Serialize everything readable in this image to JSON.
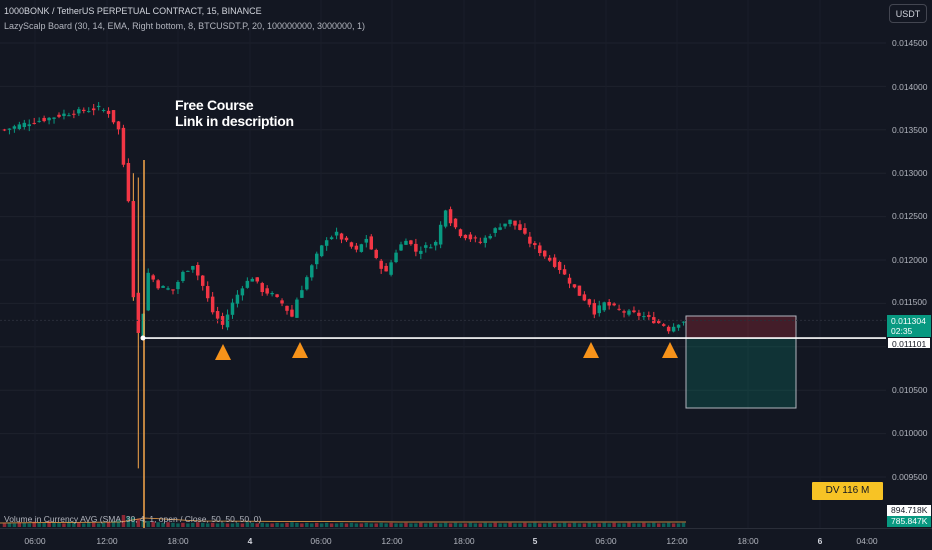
{
  "header": {
    "symbol_title": "1000BONK / TetherUS PERPETUAL CONTRACT, 15, BINANCE",
    "indicator_label": "LazyScalp Board (30, 14, EMA, Right bottom, 8, BTCUSDT.P, 20, 100000000, 3000000, 1)",
    "currency": "USDT"
  },
  "annotation": {
    "line1": "Free Course",
    "line2": "Link in description"
  },
  "price_axis": {
    "ticks": [
      "0.014500",
      "0.014000",
      "0.013500",
      "0.013000",
      "0.012500",
      "0.012000",
      "0.011500",
      "0.010500",
      "0.010000",
      "0.009500"
    ],
    "last_price": "0.011304",
    "countdown": "02:35",
    "level_price": "0.011101",
    "volume_value_1": "894.718K",
    "volume_value_2": "785.847K"
  },
  "dv_badge": "DV 116 M",
  "volume_panel": {
    "label": "Volume in Currency AVG (SMA, 30, 4, 1, open / Close, 50, 50, 50, 0)"
  },
  "time_axis": {
    "ticks": [
      "06:00",
      "12:00",
      "18:00",
      "4",
      "06:00",
      "12:00",
      "18:00",
      "5",
      "06:00",
      "12:00",
      "18:00",
      "6",
      "04:00"
    ]
  },
  "chart_data": {
    "type": "candlestick",
    "symbol": "1000BONK/USDT",
    "interval": "15",
    "ylim": [
      0.0093,
      0.0148
    ],
    "support_level": 0.011101,
    "last_price": 0.011304,
    "signal_markers": 4,
    "path_points": [
      [
        0,
        0.0135
      ],
      [
        4,
        0.01357
      ],
      [
        8,
        0.01362
      ],
      [
        12,
        0.01368
      ],
      [
        16,
        0.01372
      ],
      [
        19,
        0.01375
      ],
      [
        21,
        0.0137
      ],
      [
        23,
        0.0135
      ],
      [
        25,
        0.0127
      ],
      [
        26,
        0.0116
      ],
      [
        27,
        0.01115
      ],
      [
        28,
        0.0114
      ],
      [
        29,
        0.01185
      ],
      [
        31,
        0.0117
      ],
      [
        34,
        0.01165
      ],
      [
        36,
        0.01185
      ],
      [
        38,
        0.01195
      ],
      [
        40,
        0.0117
      ],
      [
        42,
        0.0114
      ],
      [
        44,
        0.01125
      ],
      [
        46,
        0.0115
      ],
      [
        48,
        0.0117
      ],
      [
        50,
        0.0118
      ],
      [
        52,
        0.01165
      ],
      [
        54,
        0.0116
      ],
      [
        56,
        0.0115
      ],
      [
        58,
        0.01135
      ],
      [
        59,
        0.01155
      ],
      [
        61,
        0.0118
      ],
      [
        63,
        0.01205
      ],
      [
        65,
        0.01225
      ],
      [
        67,
        0.0123
      ],
      [
        69,
        0.0122
      ],
      [
        71,
        0.0121
      ],
      [
        73,
        0.01225
      ],
      [
        75,
        0.012
      ],
      [
        77,
        0.01185
      ],
      [
        79,
        0.0121
      ],
      [
        81,
        0.01225
      ],
      [
        83,
        0.0121
      ],
      [
        85,
        0.01215
      ],
      [
        87,
        0.0122
      ],
      [
        88,
        0.0124
      ],
      [
        89,
        0.0126
      ],
      [
        90,
        0.01245
      ],
      [
        92,
        0.0123
      ],
      [
        94,
        0.01225
      ],
      [
        96,
        0.0122
      ],
      [
        98,
        0.0123
      ],
      [
        100,
        0.0124
      ],
      [
        102,
        0.01245
      ],
      [
        104,
        0.01235
      ],
      [
        106,
        0.0122
      ],
      [
        108,
        0.0121
      ],
      [
        110,
        0.012
      ],
      [
        112,
        0.0119
      ],
      [
        114,
        0.01175
      ],
      [
        116,
        0.0116
      ],
      [
        118,
        0.0115
      ],
      [
        119,
        0.0114
      ],
      [
        121,
        0.0115
      ],
      [
        123,
        0.01145
      ],
      [
        125,
        0.0114
      ],
      [
        127,
        0.01138
      ],
      [
        129,
        0.01135
      ],
      [
        131,
        0.0113
      ],
      [
        133,
        0.01125
      ],
      [
        134,
        0.0112
      ],
      [
        136,
        0.01128
      ],
      [
        137,
        0.0113
      ]
    ],
    "volume": [
      0.3,
      0.35,
      0.3,
      0.4,
      0.35,
      0.3,
      0.45,
      0.4,
      0.35,
      0.5,
      0.4,
      0.35,
      0.3,
      0.45,
      0.4,
      0.35,
      0.3,
      0.4,
      0.35,
      0.3,
      0.35,
      0.4,
      0.5,
      0.6,
      1.0,
      0.9,
      0.8,
      0.7,
      0.6,
      0.5,
      0.45,
      0.4,
      0.35,
      0.4,
      0.35,
      0.3,
      0.35,
      0.3,
      0.35,
      0.4,
      0.35,
      0.3,
      0.35,
      0.3,
      0.35,
      0.3,
      0.3,
      0.35,
      0.3,
      0.4,
      0.35,
      0.3,
      0.35,
      0.3,
      0.3,
      0.35,
      0.3,
      0.35,
      0.4,
      0.35,
      0.3,
      0.35,
      0.3,
      0.35,
      0.3,
      0.35,
      0.3,
      0.3,
      0.35,
      0.3,
      0.35,
      0.3,
      0.3,
      0.35,
      0.3,
      0.3,
      0.35,
      0.3,
      0.35,
      0.3,
      0.3,
      0.35,
      0.3,
      0.3,
      0.35,
      0.3,
      0.35,
      0.3,
      0.3,
      0.35,
      0.3,
      0.35,
      0.3,
      0.3,
      0.35,
      0.3,
      0.3,
      0.35,
      0.3,
      0.35,
      0.3,
      0.3,
      0.35,
      0.3,
      0.3,
      0.35,
      0.3,
      0.35,
      0.3,
      0.3,
      0.35,
      0.3,
      0.3,
      0.35,
      0.3,
      0.35,
      0.3,
      0.3,
      0.35,
      0.3,
      0.3,
      0.35,
      0.3,
      0.35,
      0.3,
      0.3,
      0.35,
      0.3,
      0.3,
      0.35,
      0.3,
      0.35,
      0.3,
      0.3,
      0.35,
      0.3,
      0.3,
      0.35
    ]
  },
  "colors": {
    "up": "#089981",
    "down": "#f23645",
    "background": "#131722",
    "marker": "#f7931a",
    "highlight": "#f7c325"
  }
}
